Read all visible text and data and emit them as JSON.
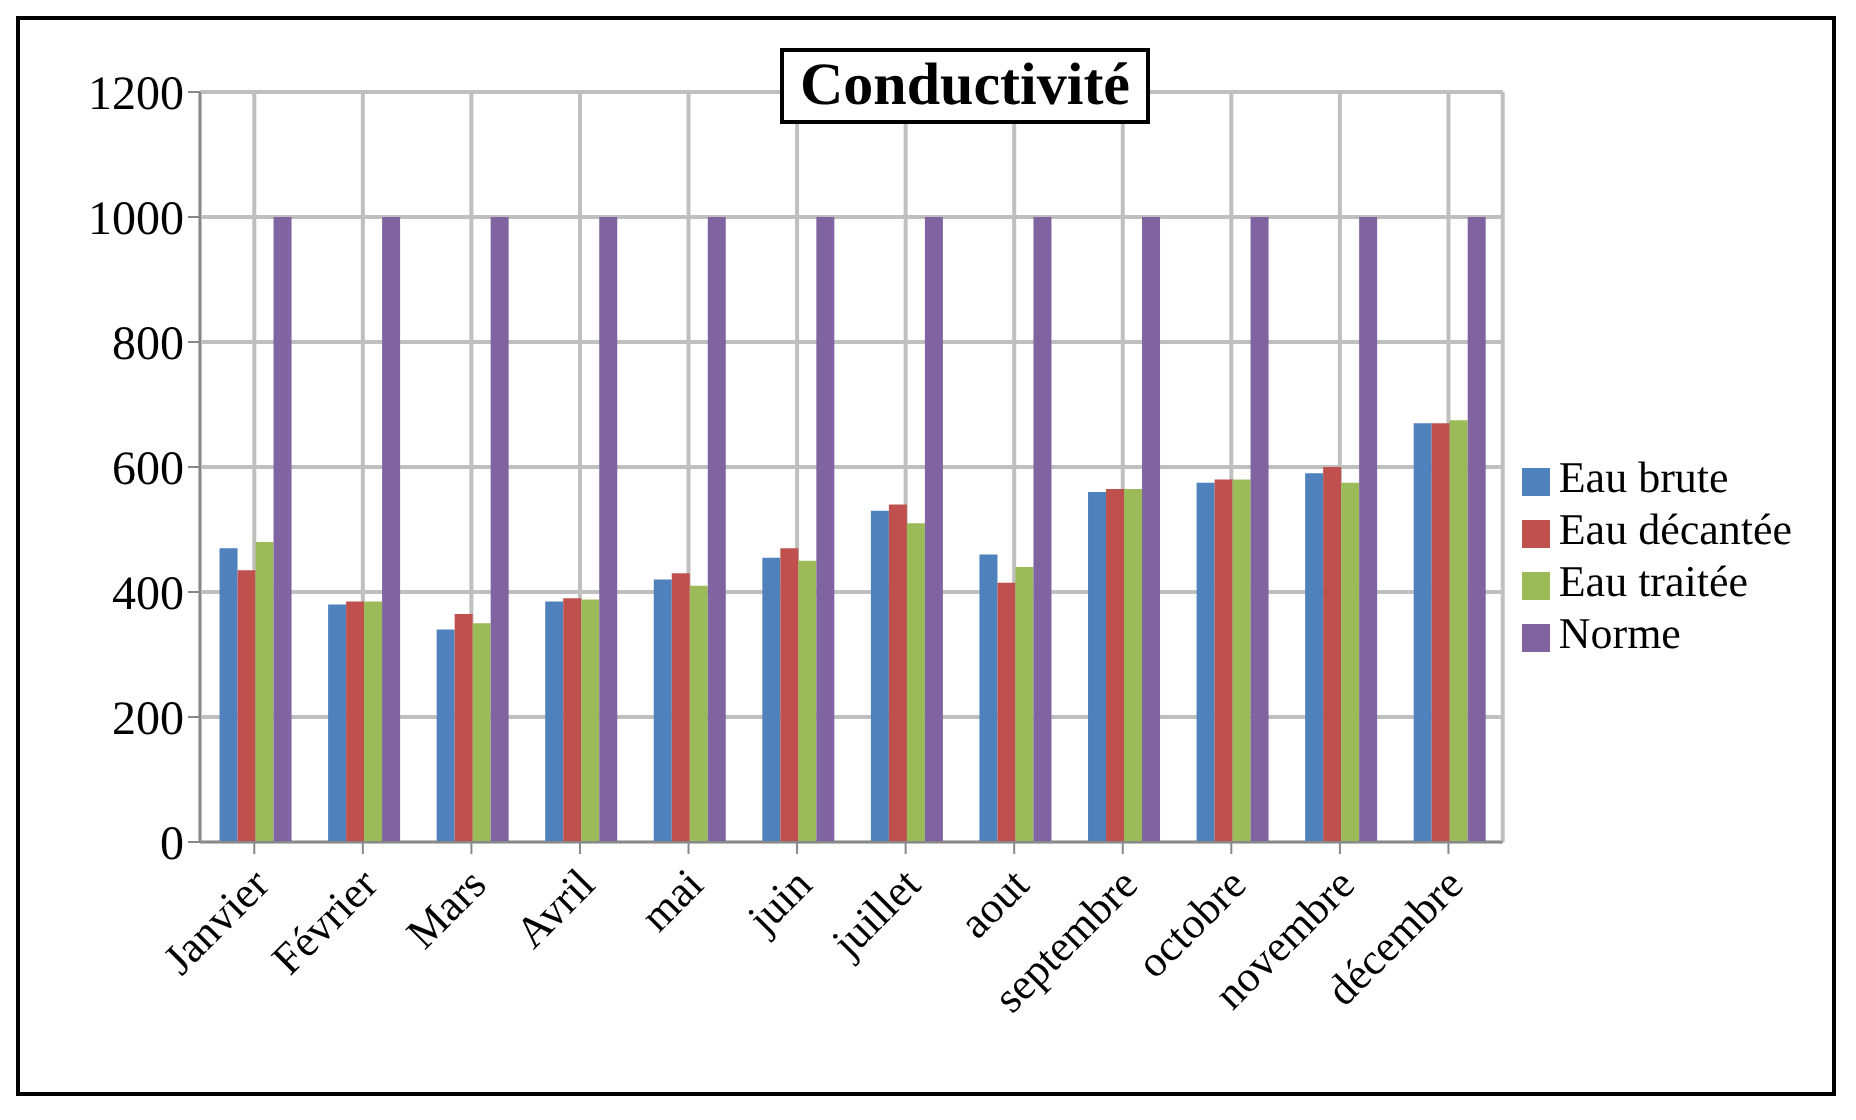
{
  "chart_data": {
    "type": "bar",
    "title": "Conductivité",
    "categories": [
      "Janvier",
      "Février",
      "Mars",
      "Avril",
      "mai",
      "juin",
      "juillet",
      "aout",
      "septembre",
      "octobre",
      "novembre",
      "décembre"
    ],
    "series": [
      {
        "name": "Eau brute",
        "color": "#4f81bd",
        "values": [
          470,
          380,
          340,
          385,
          420,
          455,
          530,
          460,
          560,
          575,
          590,
          670
        ]
      },
      {
        "name": "Eau décantée",
        "color": "#c0504d",
        "values": [
          435,
          385,
          365,
          390,
          430,
          470,
          540,
          415,
          565,
          580,
          600,
          670
        ]
      },
      {
        "name": "Eau traitée",
        "color": "#9bbb59",
        "values": [
          480,
          385,
          350,
          388,
          410,
          450,
          510,
          440,
          565,
          580,
          575,
          675
        ]
      },
      {
        "name": "Norme",
        "color": "#8064a2",
        "values": [
          1000,
          1000,
          1000,
          1000,
          1000,
          1000,
          1000,
          1000,
          1000,
          1000,
          1000,
          1000
        ]
      }
    ],
    "ylim": [
      0,
      1200
    ],
    "yticks": [
      0,
      200,
      400,
      600,
      800,
      1000,
      1200
    ],
    "grid": true,
    "legend": "right"
  }
}
